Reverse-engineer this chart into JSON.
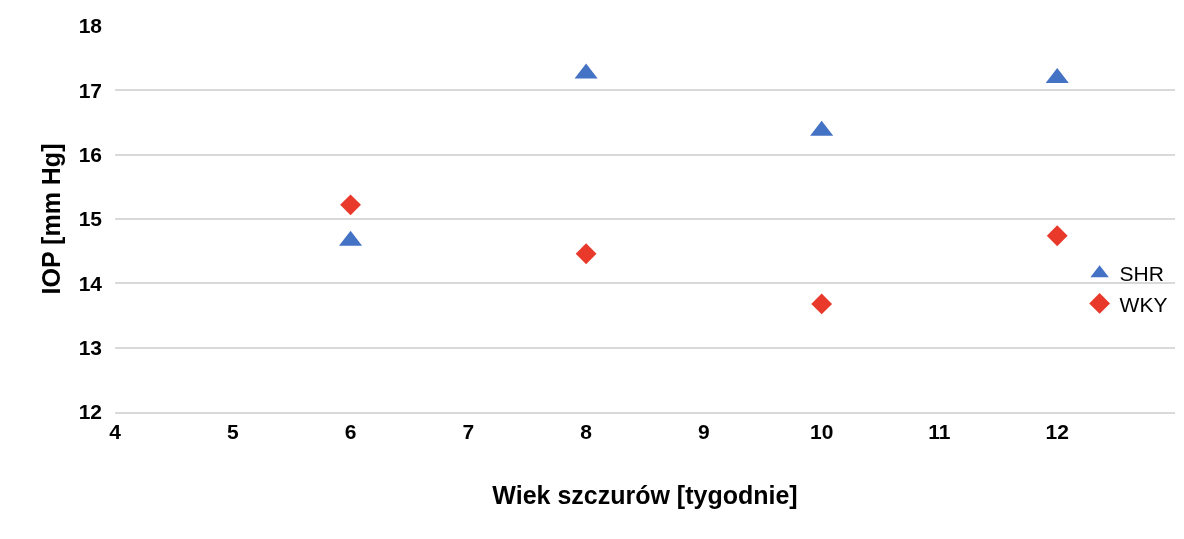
{
  "chart_data": {
    "type": "scatter",
    "xlabel": "Wiek szczurów [tygodnie]",
    "ylabel": "IOP [mm Hg]",
    "x": [
      6,
      8,
      10,
      12
    ],
    "series": [
      {
        "name": "SHR",
        "color": "#4472c4",
        "marker": "triangle",
        "values": [
          14.66,
          17.26,
          16.37,
          17.19
        ]
      },
      {
        "name": "WKY",
        "color": "#e8392b",
        "marker": "diamond",
        "values": [
          15.22,
          14.46,
          13.68,
          14.74
        ]
      }
    ],
    "xlim": [
      4,
      13
    ],
    "xticks": [
      4,
      5,
      6,
      7,
      8,
      9,
      10,
      11,
      12
    ],
    "ylim": [
      12,
      18
    ],
    "yticks": [
      12,
      13,
      14,
      15,
      16,
      17,
      18
    ],
    "grid": "y",
    "legend": "right"
  }
}
